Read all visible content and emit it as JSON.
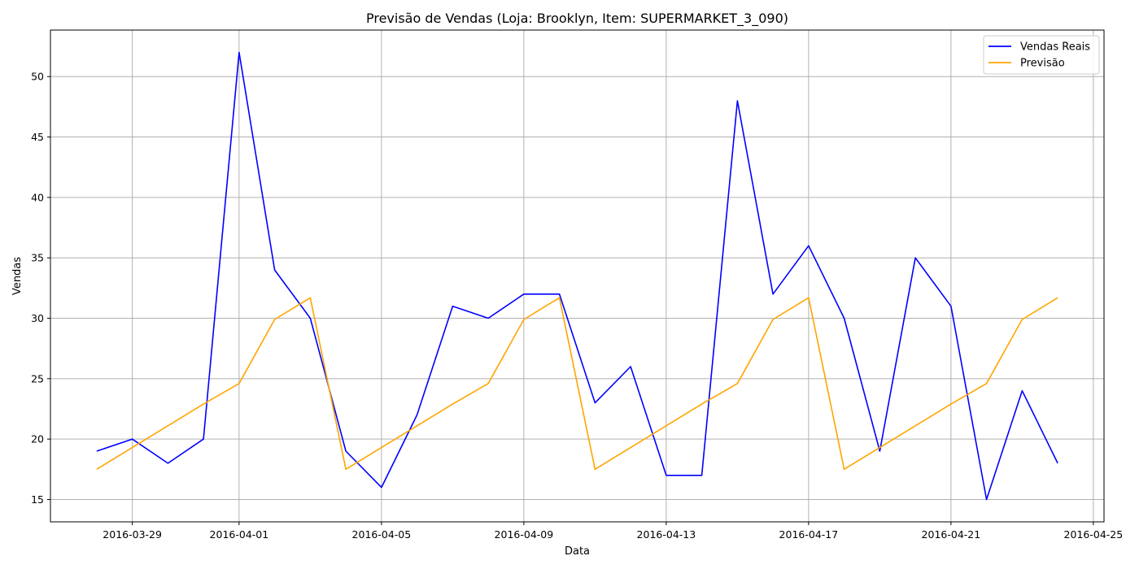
{
  "chart_data": {
    "type": "line",
    "title": "Previsão de Vendas (Loja: Brooklyn, Item: SUPERMARKET_3_090)",
    "xlabel": "Data",
    "ylabel": "Vendas",
    "x": [
      "2016-03-28",
      "2016-03-29",
      "2016-03-30",
      "2016-03-31",
      "2016-04-01",
      "2016-04-02",
      "2016-04-03",
      "2016-04-04",
      "2016-04-05",
      "2016-04-06",
      "2016-04-07",
      "2016-04-08",
      "2016-04-09",
      "2016-04-10",
      "2016-04-11",
      "2016-04-12",
      "2016-04-13",
      "2016-04-14",
      "2016-04-15",
      "2016-04-16",
      "2016-04-17",
      "2016-04-18",
      "2016-04-19",
      "2016-04-20",
      "2016-04-21",
      "2016-04-22",
      "2016-04-23",
      "2016-04-24"
    ],
    "series": [
      {
        "name": "Vendas Reais",
        "color": "#0000ff",
        "values": [
          19,
          20,
          18,
          20,
          52,
          34,
          30,
          19,
          16,
          22,
          31,
          30,
          32,
          32,
          23,
          26,
          17,
          17,
          48,
          32,
          36,
          30,
          19,
          35,
          31,
          15,
          24,
          18
        ]
      },
      {
        "name": "Previsão",
        "color": "#ffa500",
        "values": [
          17.5,
          19.3,
          21.1,
          22.9,
          24.6,
          29.9,
          31.7,
          17.5,
          19.3,
          21.1,
          22.9,
          24.6,
          29.9,
          31.7,
          17.5,
          19.3,
          21.1,
          22.9,
          24.6,
          29.9,
          31.7,
          17.5,
          19.3,
          21.1,
          22.9,
          24.6,
          29.9,
          31.7
        ]
      }
    ],
    "xticks": [
      "2016-03-29",
      "2016-04-01",
      "2016-04-05",
      "2016-04-09",
      "2016-04-13",
      "2016-04-17",
      "2016-04-21",
      "2016-04-25"
    ],
    "yticks": [
      15,
      20,
      25,
      30,
      35,
      40,
      45,
      50
    ],
    "xlim": [
      "2016-03-26T16:48",
      "2016-04-25T07:12"
    ],
    "ylim": [
      13.15,
      53.85
    ],
    "grid": true,
    "legend_position": "top-right"
  }
}
